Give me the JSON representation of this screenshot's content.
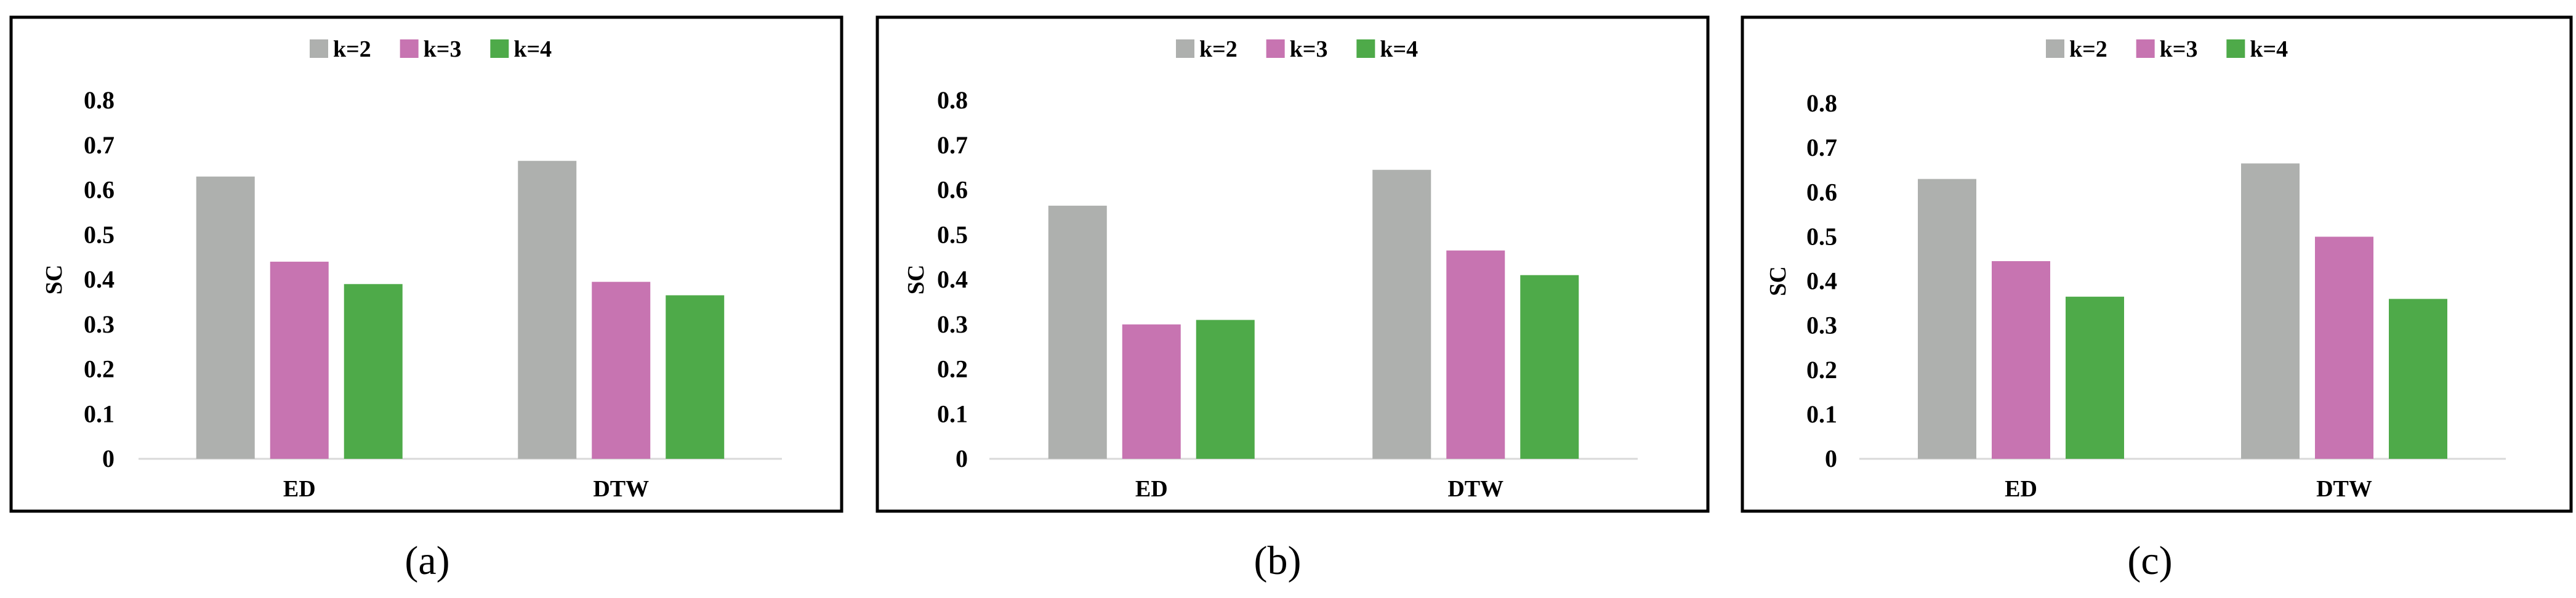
{
  "colors": {
    "k2": "#aeb0ae",
    "k3": "#c774b1",
    "k4": "#4eaa49"
  },
  "chart_data": [
    {
      "type": "bar",
      "caption": "(a)",
      "categories": [
        "ED",
        "DTW"
      ],
      "series": [
        {
          "name": "k=2",
          "values": [
            0.63,
            0.665
          ]
        },
        {
          "name": "k=3",
          "values": [
            0.44,
            0.395
          ]
        },
        {
          "name": "k=4",
          "values": [
            0.39,
            0.365
          ]
        }
      ],
      "ylabel": "SC",
      "ylim": [
        0,
        0.8
      ],
      "yticks": [
        "0",
        "0.1",
        "0.2",
        "0.3",
        "0.4",
        "0.5",
        "0.6",
        "0.7",
        "0.8"
      ],
      "legend": "top-center",
      "grid": false
    },
    {
      "type": "bar",
      "caption": "(b)",
      "categories": [
        "ED",
        "DTW"
      ],
      "series": [
        {
          "name": "k=2",
          "values": [
            0.565,
            0.645
          ]
        },
        {
          "name": "k=3",
          "values": [
            0.3,
            0.465
          ]
        },
        {
          "name": "k=4",
          "values": [
            0.31,
            0.41
          ]
        }
      ],
      "ylabel": "SC",
      "ylim": [
        0,
        0.8
      ],
      "yticks": [
        "0",
        "0.1",
        "0.2",
        "0.3",
        "0.4",
        "0.5",
        "0.6",
        "0.7",
        "0.8"
      ],
      "legend": "top-center",
      "grid": false
    },
    {
      "type": "bar",
      "caption": "(c)",
      "categories": [
        "ED",
        "DTW"
      ],
      "series": [
        {
          "name": "k=2",
          "values": [
            0.63,
            0.665
          ]
        },
        {
          "name": "k=3",
          "values": [
            0.445,
            0.5
          ]
        },
        {
          "name": "k=4",
          "values": [
            0.365,
            0.36
          ]
        }
      ],
      "ylabel": "SC",
      "ylim": [
        0,
        0.8
      ],
      "yticks": [
        "0",
        "0.1",
        "0.2",
        "0.3",
        "0.4",
        "0.5",
        "0.6",
        "0.7",
        "0.8"
      ],
      "legend": "top-center",
      "grid": false
    }
  ]
}
